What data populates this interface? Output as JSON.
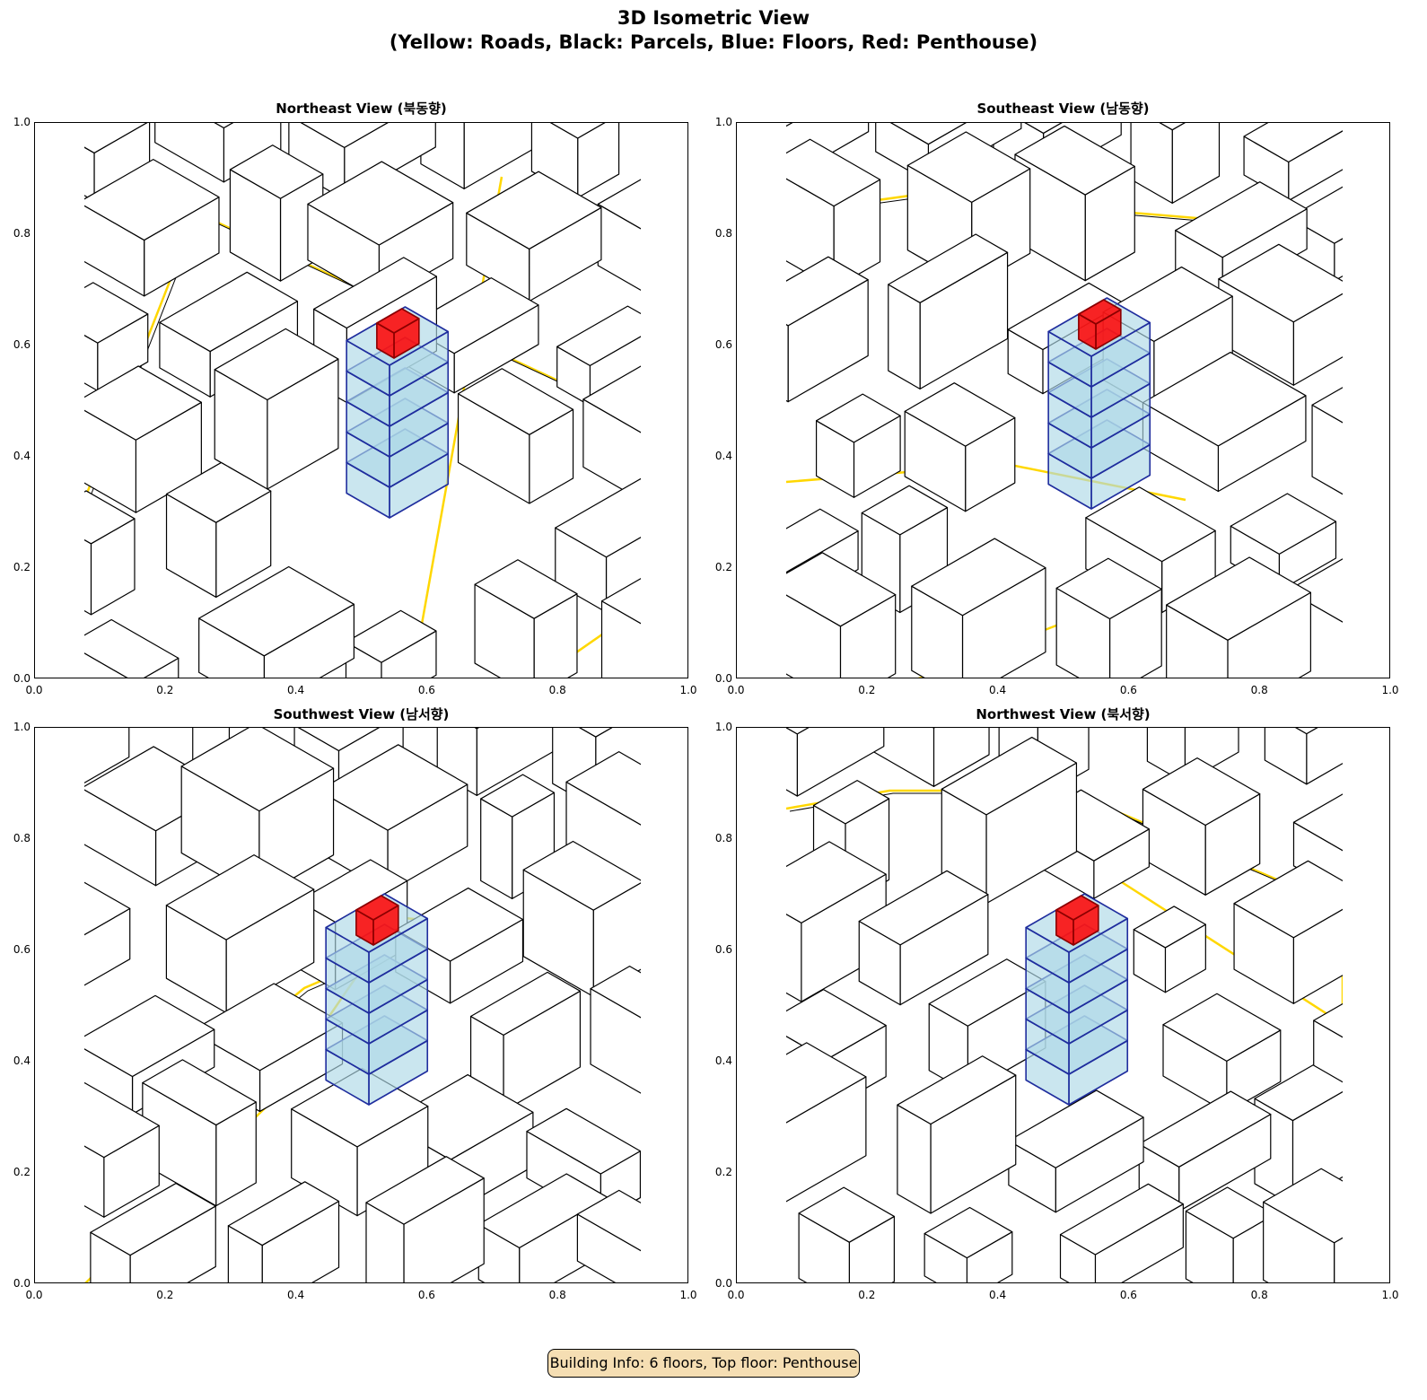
{
  "figure": {
    "title_line1": "3D Isometric View",
    "title_line2": "(Yellow: Roads, Black: Parcels, Blue: Floors, Red: Penthouse)"
  },
  "panels": [
    {
      "title": "Northeast View (북동향)"
    },
    {
      "title": "Southeast View (남동향)"
    },
    {
      "title": "Southwest View (남서향)"
    },
    {
      "title": "Northwest View (북서향)"
    }
  ],
  "axes": {
    "xticks": [
      "0.0",
      "0.2",
      "0.4",
      "0.6",
      "0.8",
      "1.0"
    ],
    "yticks": [
      "0.0",
      "0.2",
      "0.4",
      "0.6",
      "0.8",
      "1.0"
    ],
    "xlim": [
      0,
      1
    ],
    "ylim": [
      0,
      1
    ]
  },
  "colors": {
    "roads": "#ffd700",
    "parcels": "#000000",
    "floors": "#add8e6",
    "floor_edges": "#1f2d9e",
    "penthouse": "#ff0000"
  },
  "building": {
    "floors": 6,
    "top_floor": "Penthouse"
  },
  "info_box": "Building Info: 6 floors, Top floor: Penthouse"
}
